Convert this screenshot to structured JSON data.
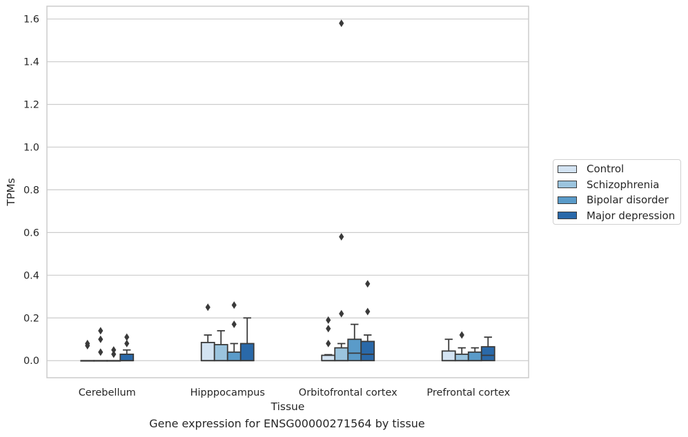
{
  "caption": "Gene expression for ENSG00000271564 by tissue",
  "chart_data": {
    "type": "box",
    "xlabel": "Tissue",
    "ylabel": "TPMs",
    "ylim": [
      -0.08,
      1.66
    ],
    "yticks": [
      "0.0",
      "0.2",
      "0.4",
      "0.6",
      "0.8",
      "1.0",
      "1.2",
      "1.4",
      "1.6"
    ],
    "grid": "horizontal",
    "legend_position": "right",
    "categories": [
      "Cerebellum",
      "Hipppocampus",
      "Orbitofrontal cortex",
      "Prefrontal cortex"
    ],
    "series": [
      {
        "name": "Control",
        "color": "#d3e3f2",
        "boxes": [
          {
            "q1": 0.0,
            "median": 0.0,
            "q3": 0.0,
            "whisker_low": 0.0,
            "whisker_high": 0.0,
            "outliers": [
              0.07,
              0.08
            ]
          },
          {
            "q1": 0.0,
            "median": 0.0,
            "q3": 0.085,
            "whisker_low": 0.0,
            "whisker_high": 0.12,
            "outliers": [
              0.25
            ]
          },
          {
            "q1": 0.0,
            "median": 0.0,
            "q3": 0.025,
            "whisker_low": 0.0,
            "whisker_high": 0.028,
            "outliers": [
              0.08,
              0.15,
              0.19
            ]
          },
          {
            "q1": 0.0,
            "median": 0.0,
            "q3": 0.045,
            "whisker_low": 0.0,
            "whisker_high": 0.1,
            "outliers": []
          }
        ]
      },
      {
        "name": "Schizophrenia",
        "color": "#9bc4de",
        "boxes": [
          {
            "q1": 0.0,
            "median": 0.0,
            "q3": 0.0,
            "whisker_low": 0.0,
            "whisker_high": 0.0,
            "outliers": [
              0.04,
              0.1,
              0.14
            ]
          },
          {
            "q1": 0.0,
            "median": 0.0,
            "q3": 0.075,
            "whisker_low": 0.0,
            "whisker_high": 0.14,
            "outliers": []
          },
          {
            "q1": 0.0,
            "median": 0.0,
            "q3": 0.06,
            "whisker_low": 0.0,
            "whisker_high": 0.08,
            "outliers": [
              0.22,
              0.58,
              1.58
            ]
          },
          {
            "q1": 0.0,
            "median": 0.0,
            "q3": 0.03,
            "whisker_low": 0.0,
            "whisker_high": 0.06,
            "outliers": [
              0.12
            ]
          }
        ]
      },
      {
        "name": "Bipolar disorder",
        "color": "#5a9bc9",
        "boxes": [
          {
            "q1": 0.0,
            "median": 0.0,
            "q3": 0.0,
            "whisker_low": 0.0,
            "whisker_high": 0.0,
            "outliers": [
              0.03,
              0.05
            ]
          },
          {
            "q1": 0.0,
            "median": 0.0,
            "q3": 0.04,
            "whisker_low": 0.0,
            "whisker_high": 0.08,
            "outliers": [
              0.17,
              0.26
            ]
          },
          {
            "q1": 0.0,
            "median": 0.035,
            "q3": 0.1,
            "whisker_low": 0.0,
            "whisker_high": 0.17,
            "outliers": []
          },
          {
            "q1": 0.0,
            "median": 0.0,
            "q3": 0.04,
            "whisker_low": 0.0,
            "whisker_high": 0.06,
            "outliers": []
          }
        ]
      },
      {
        "name": "Major depression",
        "color": "#2a69a9",
        "boxes": [
          {
            "q1": 0.0,
            "median": 0.0,
            "q3": 0.03,
            "whisker_low": 0.0,
            "whisker_high": 0.05,
            "outliers": [
              0.08,
              0.11
            ]
          },
          {
            "q1": 0.0,
            "median": 0.0,
            "q3": 0.08,
            "whisker_low": 0.0,
            "whisker_high": 0.2,
            "outliers": []
          },
          {
            "q1": 0.0,
            "median": 0.03,
            "q3": 0.09,
            "whisker_low": 0.0,
            "whisker_high": 0.12,
            "outliers": [
              0.23,
              0.36
            ]
          },
          {
            "q1": 0.0,
            "median": 0.025,
            "q3": 0.065,
            "whisker_low": 0.0,
            "whisker_high": 0.11,
            "outliers": []
          }
        ]
      }
    ]
  }
}
